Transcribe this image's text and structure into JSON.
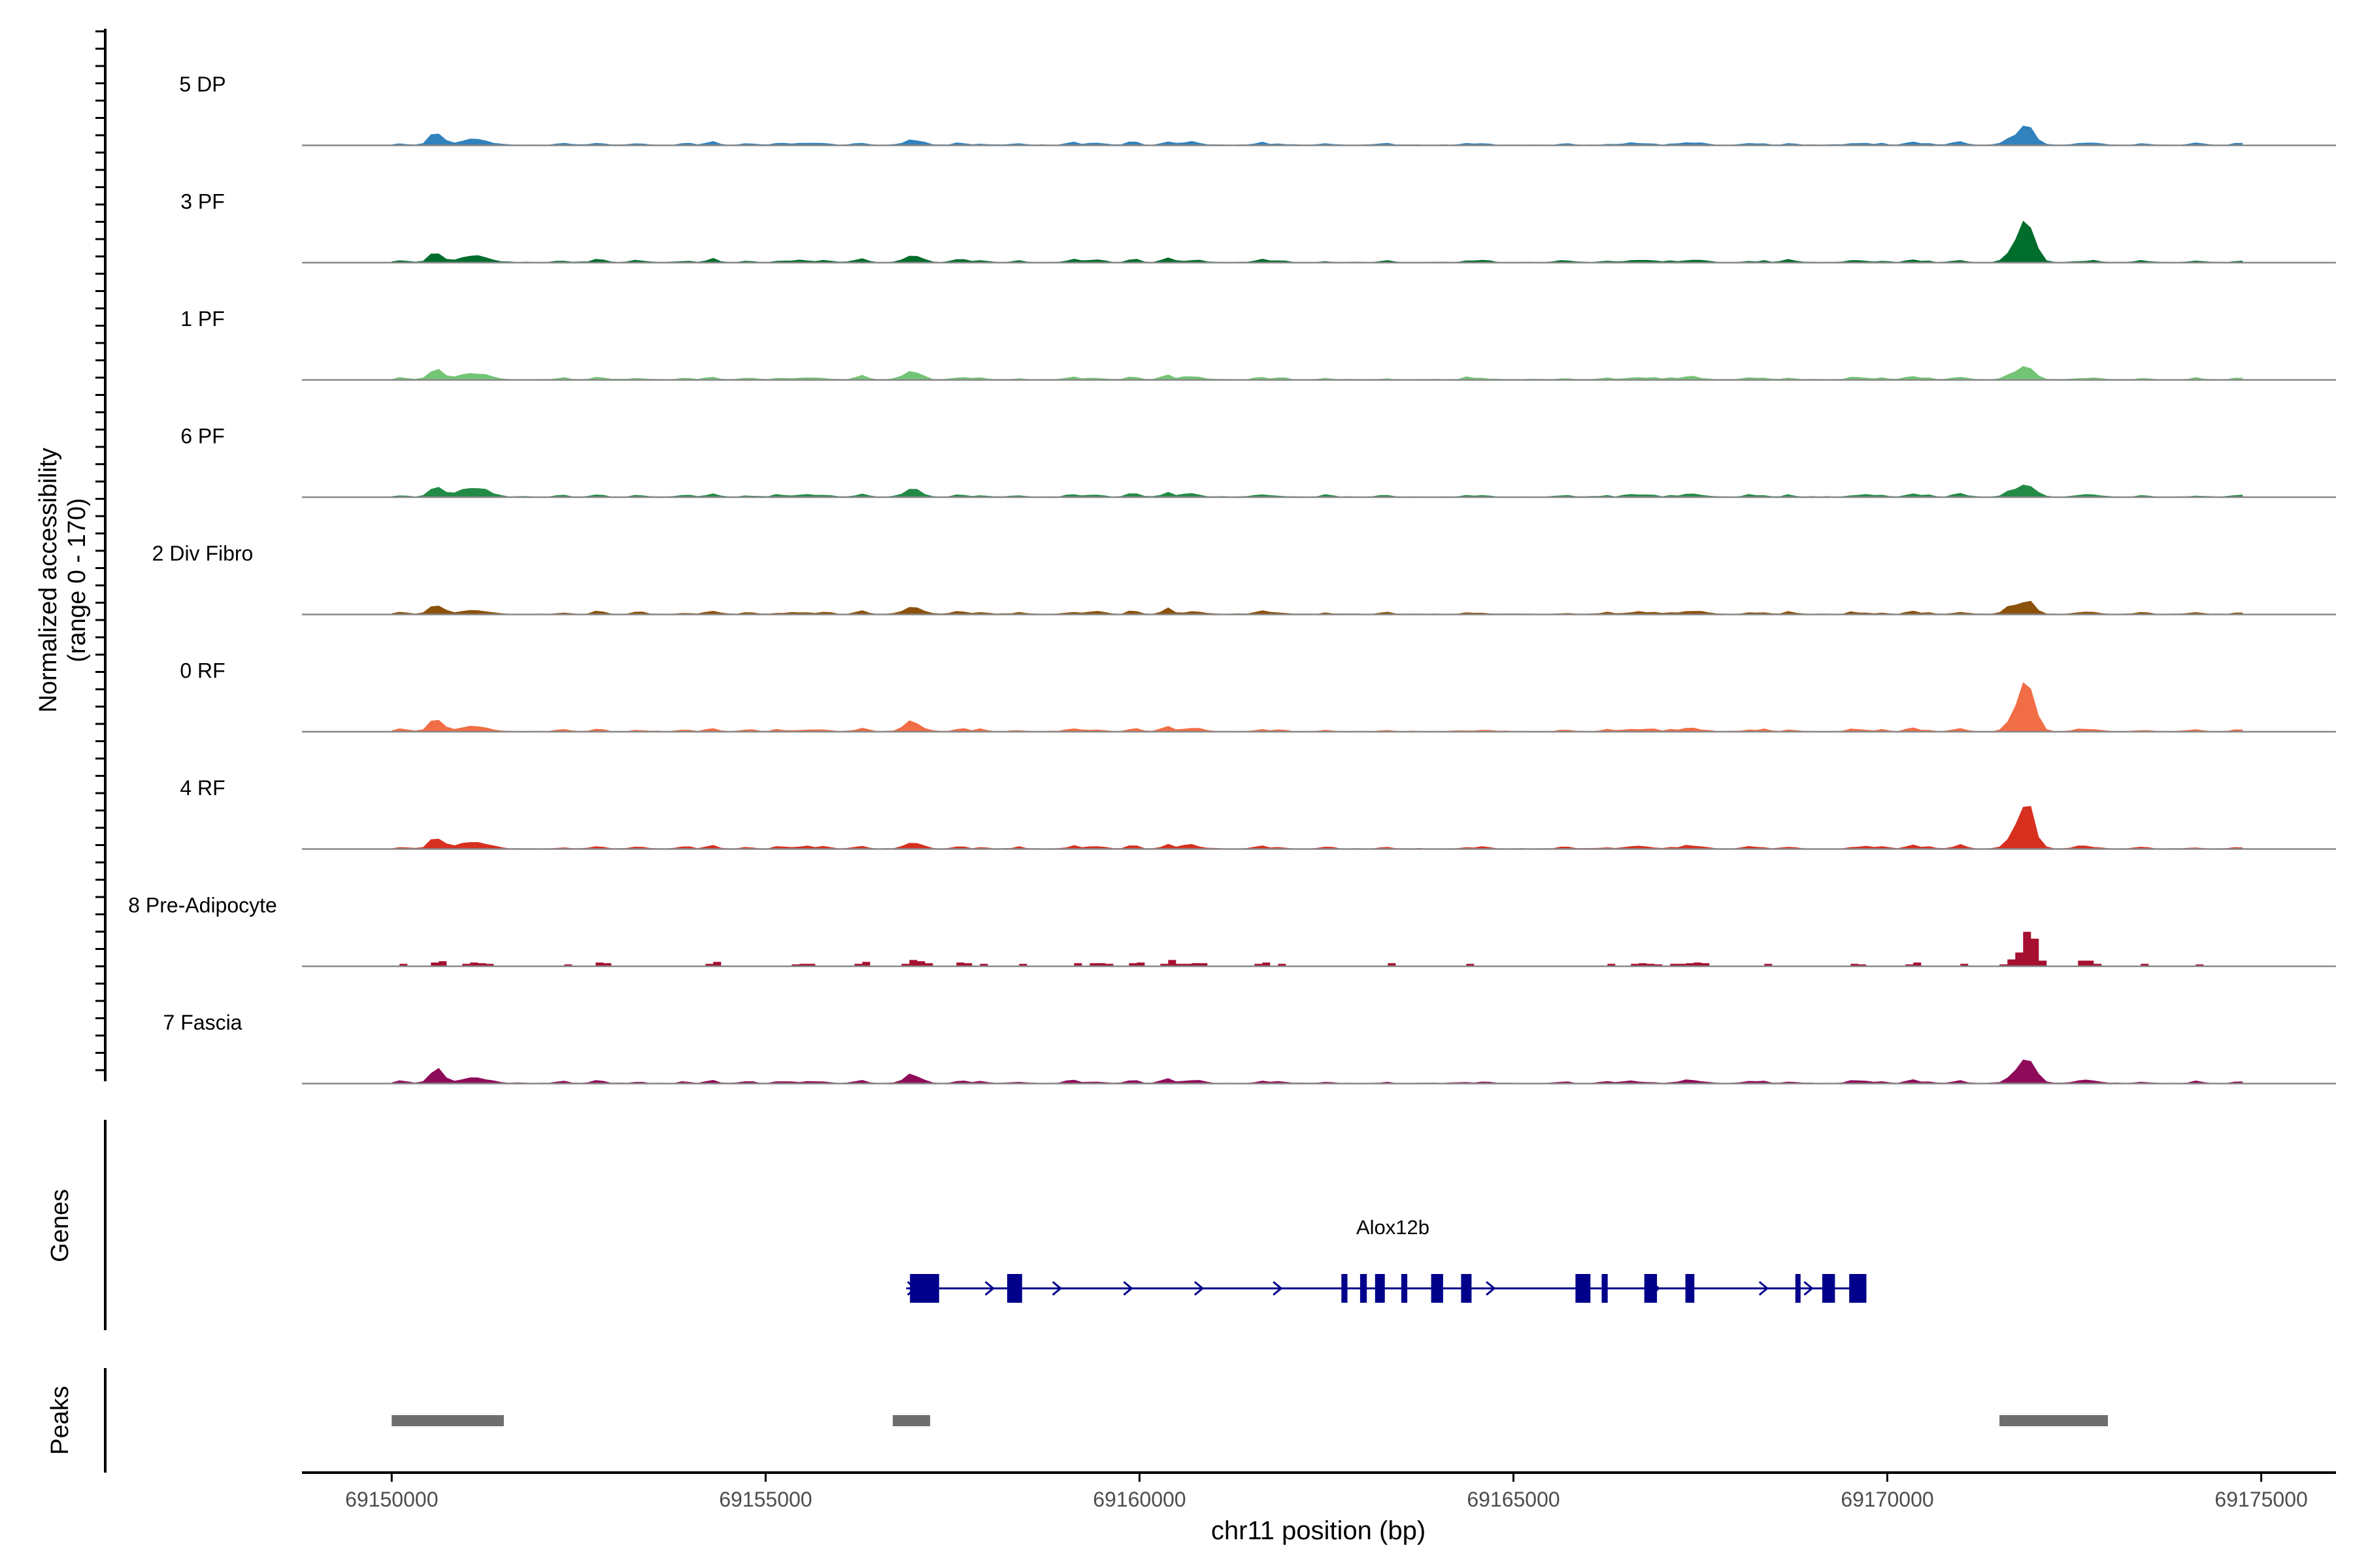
{
  "chart_data": {
    "type": "area",
    "title": "",
    "xlabel": "chr11 position (bp)",
    "ylabel_line1": "Normalized accessibility",
    "ylabel_line2": "(range 0 - 170)",
    "y_range": [
      0,
      170
    ],
    "x_range": [
      69148800,
      69176000
    ],
    "x_ticks": [
      69150000,
      69155000,
      69160000,
      69165000,
      69170000,
      69175000
    ],
    "x_tick_labels": [
      "69150000",
      "69155000",
      "69160000",
      "69165000",
      "69170000",
      "69175000"
    ],
    "track_domain": [
      69150000,
      69174800
    ],
    "grid": false,
    "peak_centers": [
      {
        "pos": 69150600,
        "w": 90
      },
      {
        "pos": 69151100,
        "w": 180
      },
      {
        "pos": 69156950,
        "w": 110
      },
      {
        "pos": 69171850,
        "w": 110
      },
      {
        "pos": 69172600,
        "w": 90
      }
    ],
    "series": [
      {
        "name": "5 DP",
        "color": "#3182bd",
        "style": "smooth",
        "peaks": [
          16,
          9,
          3.5,
          34,
          3.5
        ]
      },
      {
        "name": "3 PF",
        "color": "#006d2c",
        "style": "smooth",
        "peaks": [
          13,
          11,
          6,
          65,
          2
        ]
      },
      {
        "name": "1 PF",
        "color": "#74c476",
        "style": "smooth",
        "peaks": [
          14,
          11,
          12,
          18,
          1
        ]
      },
      {
        "name": "6 PF",
        "color": "#238b45",
        "style": "smooth",
        "peaks": [
          15,
          16,
          7,
          20,
          3
        ]
      },
      {
        "name": "2 Div Fibro",
        "color": "#8c510a",
        "style": "smooth",
        "peaks": [
          13,
          6,
          6,
          19,
          3
        ]
      },
      {
        "name": "0 RF",
        "color": "#f16d45",
        "style": "smooth",
        "peaks": [
          17,
          8,
          11,
          80,
          4
        ]
      },
      {
        "name": "4 RF",
        "color": "#d7301f",
        "style": "smooth",
        "peaks": [
          17,
          12,
          5,
          72,
          5
        ]
      },
      {
        "name": "8 Pre-Adipocyte",
        "color": "#a50f30",
        "style": "blocky",
        "peaks": [
          6,
          5,
          4,
          56,
          10
        ]
      },
      {
        "name": "7 Fascia",
        "color": "#8e0b5a",
        "style": "smooth",
        "peaks": [
          22,
          9,
          9,
          43,
          5
        ]
      }
    ],
    "genes_track": {
      "label": "Genes",
      "gene_name": "Alox12b",
      "gene_color": "#00008b",
      "gene_span": [
        69156880,
        69169720
      ],
      "exons": [
        [
          69156930,
          69157320
        ],
        [
          69158230,
          69158430
        ],
        [
          69162700,
          69162780
        ],
        [
          69162950,
          69163040
        ],
        [
          69163150,
          69163280
        ],
        [
          69163500,
          69163580
        ],
        [
          69163900,
          69164060
        ],
        [
          69164300,
          69164440
        ],
        [
          69165830,
          69166030
        ],
        [
          69166180,
          69166260
        ],
        [
          69166750,
          69166920
        ],
        [
          69167300,
          69167420
        ],
        [
          69168770,
          69168820
        ],
        [
          69169130,
          69169300
        ],
        [
          69169490,
          69169720
        ]
      ],
      "arrows": [
        69156960,
        69158000,
        69158900,
        69159850,
        69160800,
        69161850,
        69164700,
        69166900,
        69168350,
        69168950
      ]
    },
    "peaks_track": {
      "label": "Peaks",
      "color": "#6e6e6e",
      "regions": [
        [
          69150000,
          69151500
        ],
        [
          69156700,
          69157200
        ],
        [
          69171500,
          69172950
        ]
      ]
    }
  }
}
